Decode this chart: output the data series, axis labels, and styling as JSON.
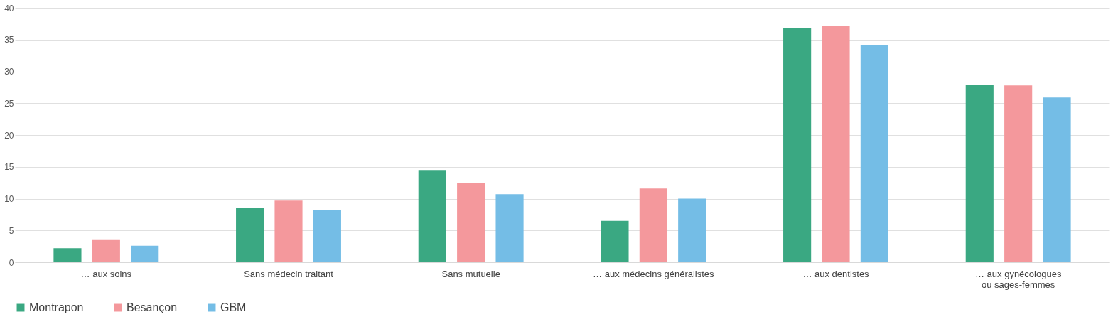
{
  "chart_data": {
    "type": "bar",
    "categories": [
      "… aux soins",
      "Sans médecin traitant",
      "Sans mutuelle",
      "… aux médecins généralistes",
      "… aux dentistes",
      "… aux gynécologues\nou sages-femmes"
    ],
    "series": [
      {
        "name": "Montrapon",
        "color": "#3aa882",
        "values": [
          2.2,
          8.6,
          14.5,
          6.5,
          36.8,
          27.9
        ]
      },
      {
        "name": "Besançon",
        "color": "#f4989c",
        "values": [
          3.6,
          9.7,
          12.5,
          11.6,
          37.2,
          27.8
        ]
      },
      {
        "name": "GBM",
        "color": "#74bde6",
        "values": [
          2.6,
          8.2,
          10.7,
          10.0,
          34.2,
          25.9
        ]
      }
    ],
    "ylim": [
      0,
      40
    ],
    "yticks": [
      0,
      5,
      10,
      15,
      20,
      25,
      30,
      35,
      40
    ],
    "grid": "y",
    "legend": "bottom"
  }
}
